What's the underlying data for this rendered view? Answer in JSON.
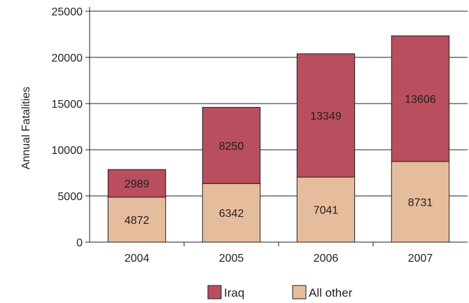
{
  "chart_data": {
    "type": "bar",
    "stacked": true,
    "categories": [
      "2004",
      "2005",
      "2006",
      "2007"
    ],
    "series": [
      {
        "name": "All other",
        "values": [
          4872,
          6342,
          7041,
          8731
        ],
        "color": "#e6bd9c"
      },
      {
        "name": "Iraq",
        "values": [
          2989,
          8250,
          13349,
          13606
        ],
        "color": "#b84e5e"
      }
    ],
    "ylabel": "Annual Fatalities",
    "xlabel": "",
    "ylim": [
      0,
      25000
    ],
    "yticks": [
      "0",
      "5000",
      "10000",
      "15000",
      "20000",
      "25000"
    ],
    "grid": true,
    "legend_position": "bottom",
    "legend_order": [
      "Iraq",
      "All other"
    ]
  }
}
